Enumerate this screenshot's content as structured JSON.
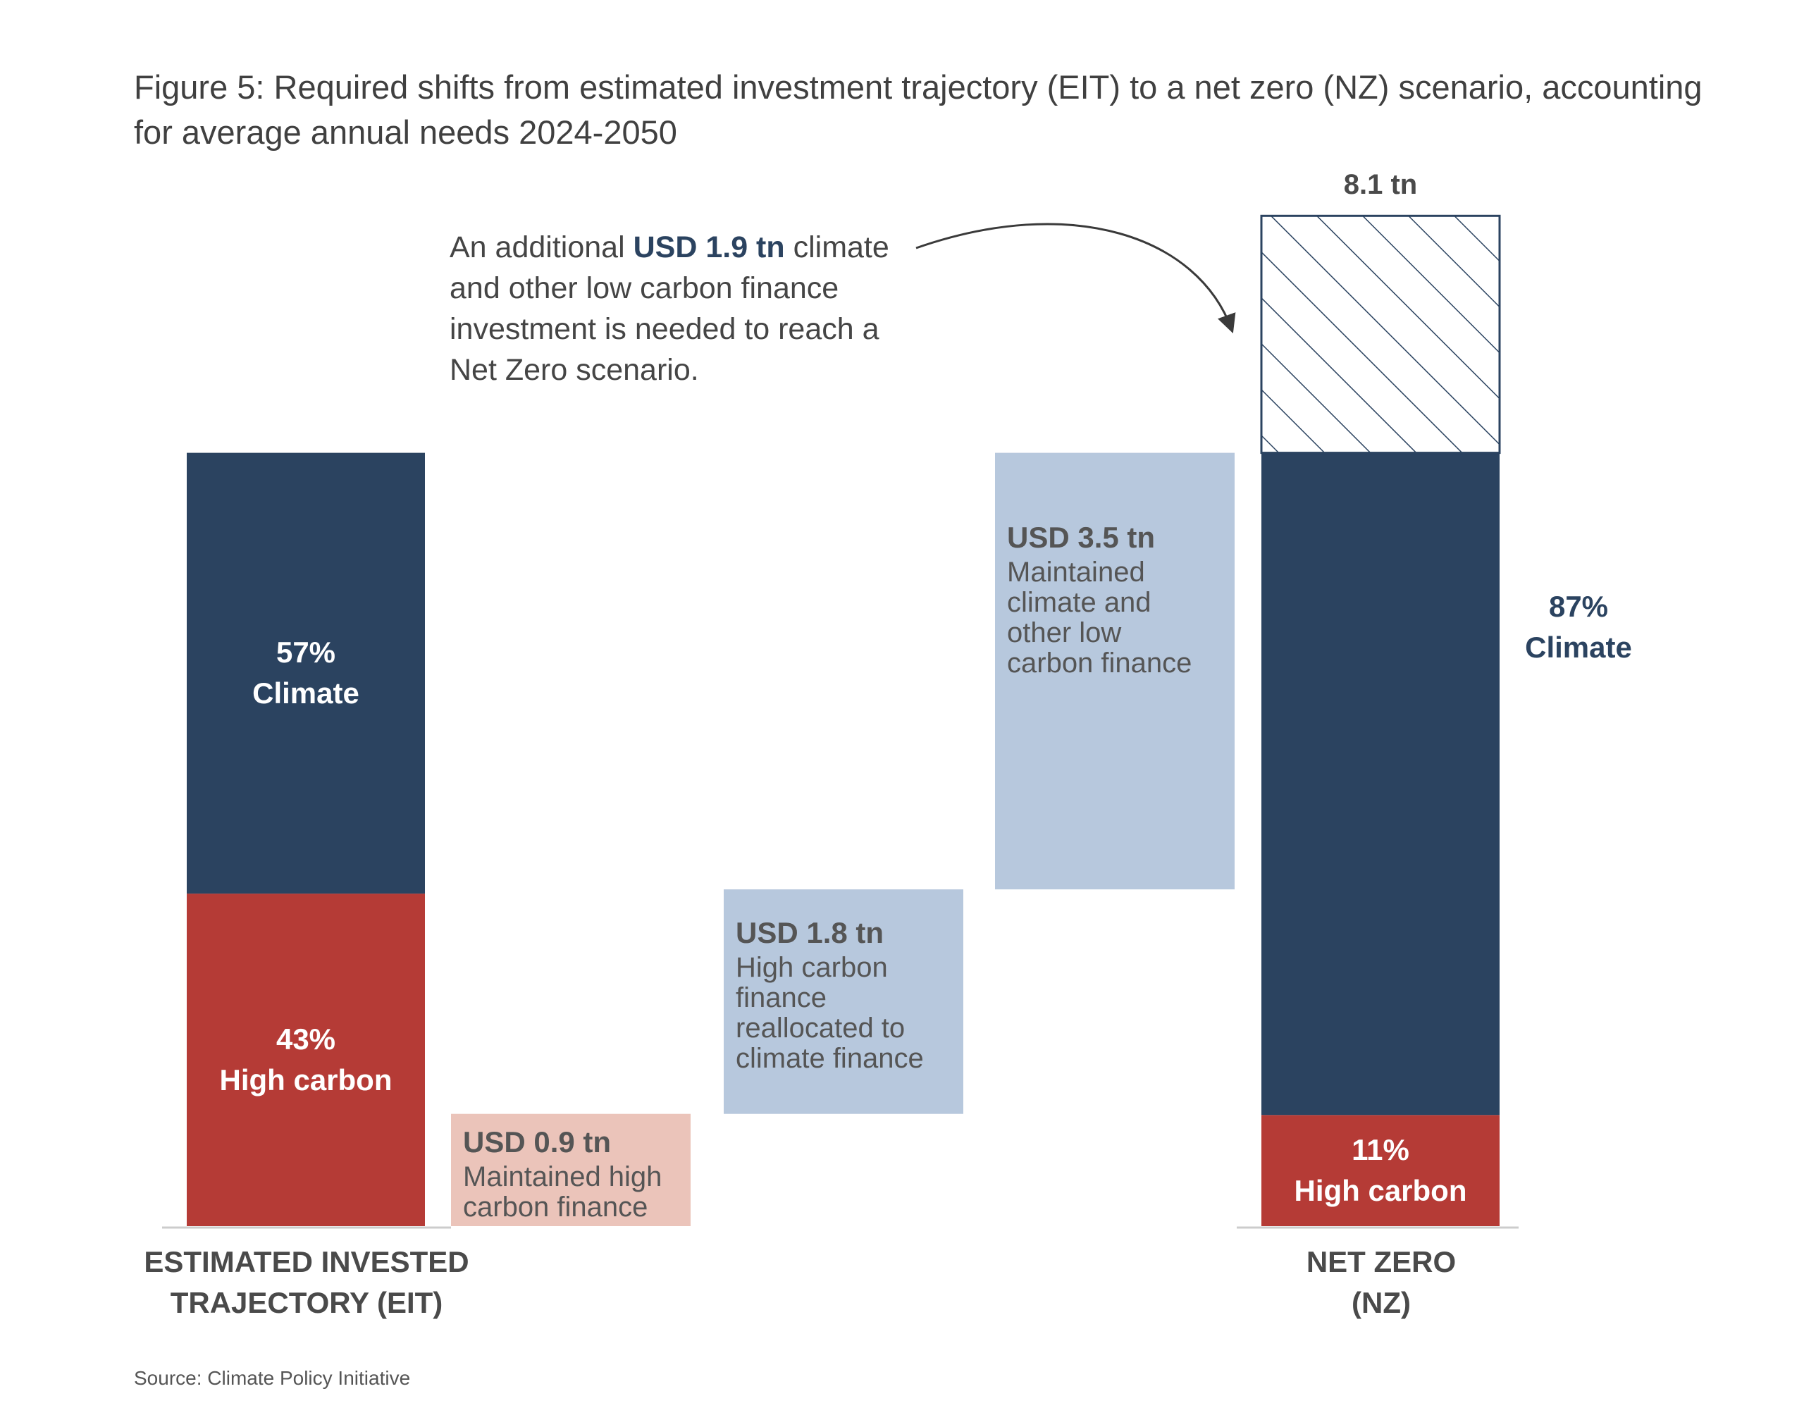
{
  "title": {
    "line1": "Figure 5: Required shifts from estimated investment trajectory (EIT) to a net zero (NZ) scenario, accounting",
    "line2": "for average annual needs 2024-2050"
  },
  "annotation": {
    "prefix": "An additional",
    "amount": "USD 1.9 tn",
    "suffix": "climate",
    "line2": "and other low carbon finance",
    "line3": "investment is needed to reach a",
    "line4": "Net Zero scenario."
  },
  "source": "Source: Climate Policy Initiative",
  "colors": {
    "climate": "#2b4360",
    "high_carbon": "#b53b36",
    "maintained_climate": "#b7c8dd",
    "reallocated": "#b7c8dd",
    "maintained_high_carbon": "#ebc4ba",
    "hatch": "#2b4360",
    "axis": "#cccccc"
  },
  "chart_data": {
    "type": "bar",
    "units": "USD tn",
    "categories": [
      "ESTIMATED INVESTED TRAJECTORY (EIT)",
      "NET ZERO (NZ)"
    ],
    "category_lines": {
      "eit": [
        "ESTIMATED INVESTED",
        "TRAJECTORY (EIT)"
      ],
      "nz": [
        "NET ZERO",
        "(NZ)"
      ]
    },
    "eit": {
      "total": 6.2,
      "segments": [
        {
          "key": "high_carbon",
          "share": 0.43,
          "pct_label": "43%",
          "label": "High carbon"
        },
        {
          "key": "climate",
          "share": 0.57,
          "pct_label": "57%",
          "label": "Climate"
        }
      ]
    },
    "nz": {
      "total": 8.1,
      "total_label": "8.1 tn",
      "segments": [
        {
          "key": "high_carbon",
          "share": 0.11,
          "pct_label": "11%",
          "label": "High carbon"
        },
        {
          "key": "climate",
          "share": 0.87,
          "pct_label": "87%",
          "label": "Climate"
        }
      ],
      "additional": 1.9
    },
    "waterfall": [
      {
        "key": "maintained_high_carbon",
        "value": 0.9,
        "label": "USD 0.9 tn",
        "desc": "Maintained high\ncarbon finance"
      },
      {
        "key": "reallocated",
        "value": 1.8,
        "label": "USD 1.8 tn",
        "desc": "High carbon\nfinance\nreallocated to\nclimate finance"
      },
      {
        "key": "maintained_climate",
        "value": 3.5,
        "label": "USD 3.5 tn",
        "desc": "Maintained\nclimate and\nother low\ncarbon finance"
      }
    ]
  }
}
